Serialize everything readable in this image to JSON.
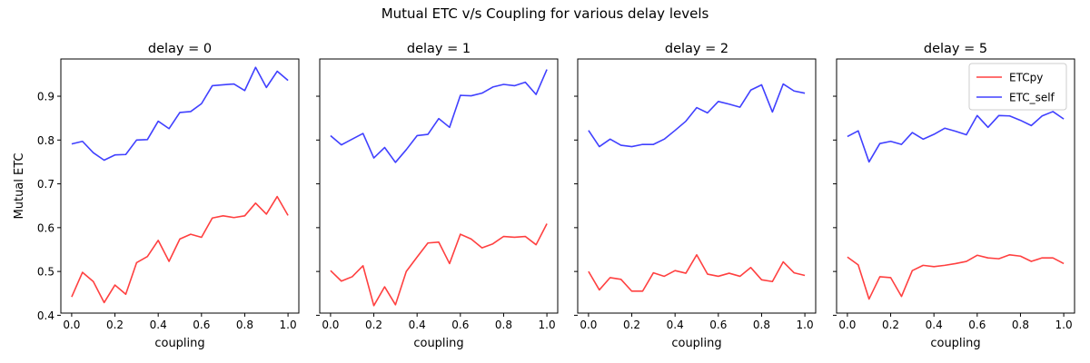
{
  "figure": {
    "suptitle": "Mutual ETC v/s Coupling for various delay levels"
  },
  "chart_data": {
    "type": "line",
    "ylabel": "Mutual ETC",
    "xlabel": "coupling",
    "xlim": [
      -0.05,
      1.05
    ],
    "ylim": [
      0.405,
      0.985
    ],
    "xticks": [
      "0.0",
      "0.2",
      "0.4",
      "0.6",
      "0.8",
      "1.0"
    ],
    "yticks": [
      "0.4",
      "0.5",
      "0.6",
      "0.7",
      "0.8",
      "0.9"
    ],
    "grid": false,
    "legend_loc": "upper right",
    "x": [
      0.0,
      0.05,
      0.1,
      0.15,
      0.2,
      0.25,
      0.3,
      0.35,
      0.4,
      0.45,
      0.5,
      0.55,
      0.6,
      0.65,
      0.7,
      0.75,
      0.8,
      0.85,
      0.9,
      0.95,
      1.0
    ],
    "series_styles": [
      {
        "name": "ETCpy",
        "color": "#ff4040"
      },
      {
        "name": "ETC_self",
        "color": "#4040ff"
      }
    ],
    "panels": [
      {
        "title": "delay = 0",
        "series": [
          {
            "name": "ETCpy",
            "values": [
              0.442,
              0.498,
              0.477,
              0.429,
              0.469,
              0.448,
              0.52,
              0.534,
              0.571,
              0.523,
              0.574,
              0.585,
              0.578,
              0.622,
              0.627,
              0.623,
              0.627,
              0.656,
              0.631,
              0.671,
              0.628
            ]
          },
          {
            "name": "ETC_self",
            "values": [
              0.791,
              0.797,
              0.771,
              0.754,
              0.766,
              0.767,
              0.8,
              0.801,
              0.843,
              0.826,
              0.863,
              0.865,
              0.883,
              0.924,
              0.926,
              0.928,
              0.913,
              0.966,
              0.92,
              0.957,
              0.936
            ]
          }
        ]
      },
      {
        "title": "delay = 1",
        "series": [
          {
            "name": "ETCpy",
            "values": [
              0.502,
              0.478,
              0.488,
              0.513,
              0.422,
              0.465,
              0.424,
              0.5,
              0.533,
              0.565,
              0.567,
              0.518,
              0.585,
              0.574,
              0.554,
              0.563,
              0.58,
              0.578,
              0.58,
              0.561,
              0.609
            ]
          },
          {
            "name": "ETC_self",
            "values": [
              0.81,
              0.789,
              0.802,
              0.815,
              0.759,
              0.783,
              0.749,
              0.778,
              0.81,
              0.813,
              0.849,
              0.829,
              0.902,
              0.901,
              0.907,
              0.921,
              0.927,
              0.924,
              0.932,
              0.904,
              0.961
            ]
          }
        ]
      },
      {
        "title": "delay = 2",
        "series": [
          {
            "name": "ETCpy",
            "values": [
              0.5,
              0.458,
              0.486,
              0.482,
              0.455,
              0.455,
              0.497,
              0.489,
              0.502,
              0.496,
              0.538,
              0.494,
              0.489,
              0.496,
              0.489,
              0.509,
              0.481,
              0.477,
              0.522,
              0.497,
              0.491
            ]
          },
          {
            "name": "ETC_self",
            "values": [
              0.822,
              0.785,
              0.802,
              0.788,
              0.785,
              0.79,
              0.79,
              0.802,
              0.822,
              0.843,
              0.874,
              0.862,
              0.888,
              0.882,
              0.875,
              0.914,
              0.926,
              0.864,
              0.928,
              0.912,
              0.907
            ]
          }
        ]
      },
      {
        "title": "delay = 5",
        "series": [
          {
            "name": "ETCpy",
            "values": [
              0.533,
              0.515,
              0.437,
              0.488,
              0.486,
              0.443,
              0.502,
              0.514,
              0.511,
              0.514,
              0.518,
              0.523,
              0.537,
              0.531,
              0.529,
              0.538,
              0.535,
              0.523,
              0.531,
              0.531,
              0.518
            ]
          },
          {
            "name": "ETC_self",
            "values": [
              0.808,
              0.821,
              0.75,
              0.792,
              0.797,
              0.79,
              0.817,
              0.802,
              0.813,
              0.827,
              0.82,
              0.812,
              0.856,
              0.829,
              0.856,
              0.855,
              0.845,
              0.833,
              0.855,
              0.865,
              0.848
            ]
          }
        ]
      }
    ]
  }
}
